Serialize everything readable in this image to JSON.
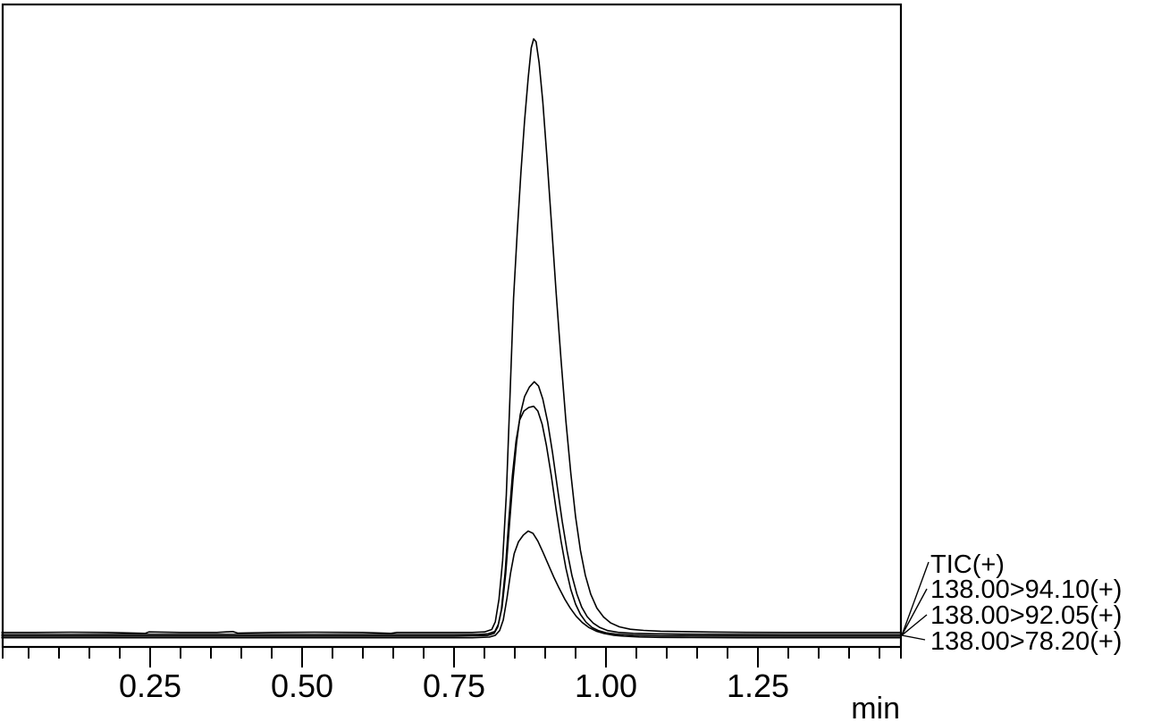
{
  "colors": {
    "trace": "#000000",
    "background": "#ffffff",
    "text": "#000000",
    "border": "#000000"
  },
  "chart_data": {
    "type": "line",
    "title": "",
    "subtitle": "",
    "xlabel": "min",
    "ylabel": "",
    "grid": "off",
    "legend_position": "right-outside-bottom",
    "x_axis": {
      "visible_min": 0.006,
      "visible_max": 1.485,
      "major_ticks": [
        0.25,
        0.5,
        0.75,
        1.0,
        1.25
      ],
      "major_tick_labels": [
        "0.25",
        "0.50",
        "0.75",
        "1.00",
        "1.25"
      ],
      "minor_tick_step": 0.05,
      "minor_tick_start": 0.05,
      "minor_tick_end": 1.45,
      "edge_ticks": true
    },
    "y_axis": {
      "ticks": "none",
      "units": "relative intensity, normalized to TIC apex = 1.0"
    },
    "peak_retention_time_min": 0.88,
    "series": [
      {
        "id": "tic",
        "label": "TIC(+)",
        "rel_height": 1.0,
        "apex_t": 0.881,
        "points": [
          [
            0.006,
            0.004
          ],
          [
            0.06,
            0.004
          ],
          [
            0.12,
            0.0045
          ],
          [
            0.18,
            0.004
          ],
          [
            0.242,
            0.0025
          ],
          [
            0.248,
            0.005
          ],
          [
            0.3,
            0.004
          ],
          [
            0.36,
            0.004
          ],
          [
            0.386,
            0.0055
          ],
          [
            0.394,
            0.003
          ],
          [
            0.45,
            0.004
          ],
          [
            0.52,
            0.0045
          ],
          [
            0.6,
            0.004
          ],
          [
            0.646,
            0.0025
          ],
          [
            0.656,
            0.004
          ],
          [
            0.72,
            0.004
          ],
          [
            0.78,
            0.004
          ],
          [
            0.8,
            0.005
          ],
          [
            0.812,
            0.009
          ],
          [
            0.818,
            0.022
          ],
          [
            0.824,
            0.06
          ],
          [
            0.83,
            0.125
          ],
          [
            0.836,
            0.235
          ],
          [
            0.842,
            0.4
          ],
          [
            0.848,
            0.565
          ],
          [
            0.854,
            0.675
          ],
          [
            0.86,
            0.775
          ],
          [
            0.866,
            0.862
          ],
          [
            0.872,
            0.935
          ],
          [
            0.877,
            0.985
          ],
          [
            0.881,
            1.0
          ],
          [
            0.885,
            0.995
          ],
          [
            0.89,
            0.96
          ],
          [
            0.896,
            0.895
          ],
          [
            0.903,
            0.8
          ],
          [
            0.91,
            0.695
          ],
          [
            0.918,
            0.575
          ],
          [
            0.926,
            0.462
          ],
          [
            0.934,
            0.36
          ],
          [
            0.942,
            0.272
          ],
          [
            0.95,
            0.198
          ],
          [
            0.958,
            0.142
          ],
          [
            0.966,
            0.1
          ],
          [
            0.975,
            0.068
          ],
          [
            0.985,
            0.045
          ],
          [
            0.996,
            0.03
          ],
          [
            1.008,
            0.02
          ],
          [
            1.022,
            0.0135
          ],
          [
            1.04,
            0.0095
          ],
          [
            1.062,
            0.0075
          ],
          [
            1.09,
            0.0062
          ],
          [
            1.125,
            0.0055
          ],
          [
            1.17,
            0.0048
          ],
          [
            1.23,
            0.0042
          ],
          [
            1.3,
            0.004
          ],
          [
            1.4,
            0.004
          ],
          [
            1.485,
            0.004
          ]
        ]
      },
      {
        "id": "mrm-138-94",
        "label": "138.00>94.10(+)",
        "rel_height": 0.427,
        "apex_t": 0.882,
        "points": [
          [
            0.006,
            0.003
          ],
          [
            0.1,
            0.003
          ],
          [
            0.25,
            0.0032
          ],
          [
            0.4,
            0.003
          ],
          [
            0.55,
            0.003
          ],
          [
            0.7,
            0.003
          ],
          [
            0.79,
            0.003
          ],
          [
            0.806,
            0.004
          ],
          [
            0.817,
            0.008
          ],
          [
            0.823,
            0.02
          ],
          [
            0.829,
            0.048
          ],
          [
            0.835,
            0.105
          ],
          [
            0.841,
            0.185
          ],
          [
            0.847,
            0.263
          ],
          [
            0.853,
            0.325
          ],
          [
            0.859,
            0.372
          ],
          [
            0.866,
            0.402
          ],
          [
            0.874,
            0.418
          ],
          [
            0.882,
            0.427
          ],
          [
            0.889,
            0.42
          ],
          [
            0.896,
            0.398
          ],
          [
            0.904,
            0.36
          ],
          [
            0.912,
            0.308
          ],
          [
            0.92,
            0.25
          ],
          [
            0.928,
            0.193
          ],
          [
            0.936,
            0.143
          ],
          [
            0.944,
            0.102
          ],
          [
            0.952,
            0.071
          ],
          [
            0.96,
            0.049
          ],
          [
            0.969,
            0.033
          ],
          [
            0.979,
            0.022
          ],
          [
            0.99,
            0.0145
          ],
          [
            1.003,
            0.0095
          ],
          [
            1.02,
            0.0065
          ],
          [
            1.045,
            0.0048
          ],
          [
            1.08,
            0.004
          ],
          [
            1.13,
            0.0035
          ],
          [
            1.2,
            0.0032
          ],
          [
            1.3,
            0.003
          ],
          [
            1.485,
            0.003
          ]
        ]
      },
      {
        "id": "mrm-138-92",
        "label": "138.00>92.05(+)",
        "rel_height": 0.388,
        "apex_t": 0.881,
        "points": [
          [
            0.006,
            0.0025
          ],
          [
            0.15,
            0.0025
          ],
          [
            0.3,
            0.0025
          ],
          [
            0.45,
            0.0025
          ],
          [
            0.6,
            0.0025
          ],
          [
            0.75,
            0.0025
          ],
          [
            0.805,
            0.0035
          ],
          [
            0.816,
            0.007
          ],
          [
            0.822,
            0.018
          ],
          [
            0.828,
            0.047
          ],
          [
            0.834,
            0.108
          ],
          [
            0.84,
            0.195
          ],
          [
            0.846,
            0.272
          ],
          [
            0.852,
            0.33
          ],
          [
            0.858,
            0.365
          ],
          [
            0.865,
            0.38
          ],
          [
            0.873,
            0.386
          ],
          [
            0.881,
            0.388
          ],
          [
            0.888,
            0.38
          ],
          [
            0.895,
            0.358
          ],
          [
            0.902,
            0.322
          ],
          [
            0.91,
            0.272
          ],
          [
            0.918,
            0.215
          ],
          [
            0.926,
            0.162
          ],
          [
            0.934,
            0.117
          ],
          [
            0.942,
            0.081
          ],
          [
            0.95,
            0.056
          ],
          [
            0.958,
            0.039
          ],
          [
            0.967,
            0.026
          ],
          [
            0.977,
            0.017
          ],
          [
            0.988,
            0.0115
          ],
          [
            1.0,
            0.008
          ],
          [
            1.018,
            0.0055
          ],
          [
            1.045,
            0.004
          ],
          [
            1.09,
            0.003
          ],
          [
            1.16,
            0.0027
          ],
          [
            1.3,
            0.0025
          ],
          [
            1.485,
            0.0025
          ]
        ]
      },
      {
        "id": "mrm-138-78",
        "label": "138.00>78.20(+)",
        "rel_height": 0.181,
        "apex_t": 0.875,
        "points": [
          [
            0.006,
            0.002
          ],
          [
            0.2,
            0.002
          ],
          [
            0.4,
            0.002
          ],
          [
            0.6,
            0.002
          ],
          [
            0.78,
            0.002
          ],
          [
            0.808,
            0.003
          ],
          [
            0.818,
            0.006
          ],
          [
            0.825,
            0.014
          ],
          [
            0.831,
            0.032
          ],
          [
            0.837,
            0.068
          ],
          [
            0.843,
            0.11
          ],
          [
            0.849,
            0.143
          ],
          [
            0.856,
            0.163
          ],
          [
            0.864,
            0.174
          ],
          [
            0.872,
            0.181
          ],
          [
            0.88,
            0.177
          ],
          [
            0.888,
            0.164
          ],
          [
            0.896,
            0.146
          ],
          [
            0.905,
            0.125
          ],
          [
            0.914,
            0.104
          ],
          [
            0.923,
            0.085
          ],
          [
            0.932,
            0.067
          ],
          [
            0.941,
            0.052
          ],
          [
            0.951,
            0.038
          ],
          [
            0.961,
            0.0275
          ],
          [
            0.972,
            0.019
          ],
          [
            0.984,
            0.013
          ],
          [
            0.997,
            0.009
          ],
          [
            1.012,
            0.0062
          ],
          [
            1.03,
            0.0045
          ],
          [
            1.055,
            0.0033
          ],
          [
            1.09,
            0.0026
          ],
          [
            1.14,
            0.0022
          ],
          [
            1.22,
            0.002
          ],
          [
            1.35,
            0.002
          ],
          [
            1.485,
            0.002
          ]
        ]
      }
    ]
  }
}
